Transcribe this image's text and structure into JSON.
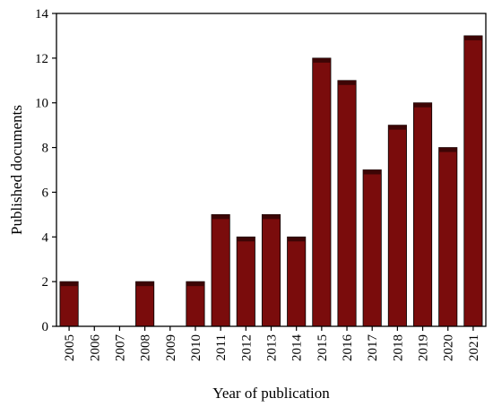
{
  "chart_data": {
    "type": "bar",
    "categories": [
      "2005",
      "2006",
      "2007",
      "2008",
      "2009",
      "2010",
      "2011",
      "2012",
      "2013",
      "2014",
      "2015",
      "2016",
      "2017",
      "2018",
      "2019",
      "2020",
      "2021"
    ],
    "values": [
      2,
      0,
      0,
      2,
      0,
      2,
      5,
      4,
      5,
      4,
      12,
      11,
      7,
      9,
      10,
      8,
      13
    ],
    "title": "",
    "xlabel": "Year of publication",
    "ylabel": "Published documents",
    "ylim": [
      0,
      14
    ],
    "yticks": [
      0,
      2,
      4,
      6,
      8,
      10,
      12,
      14
    ],
    "grid": false,
    "bar_color": "#7a0c0c",
    "bar_top_color": "#3d0505"
  }
}
